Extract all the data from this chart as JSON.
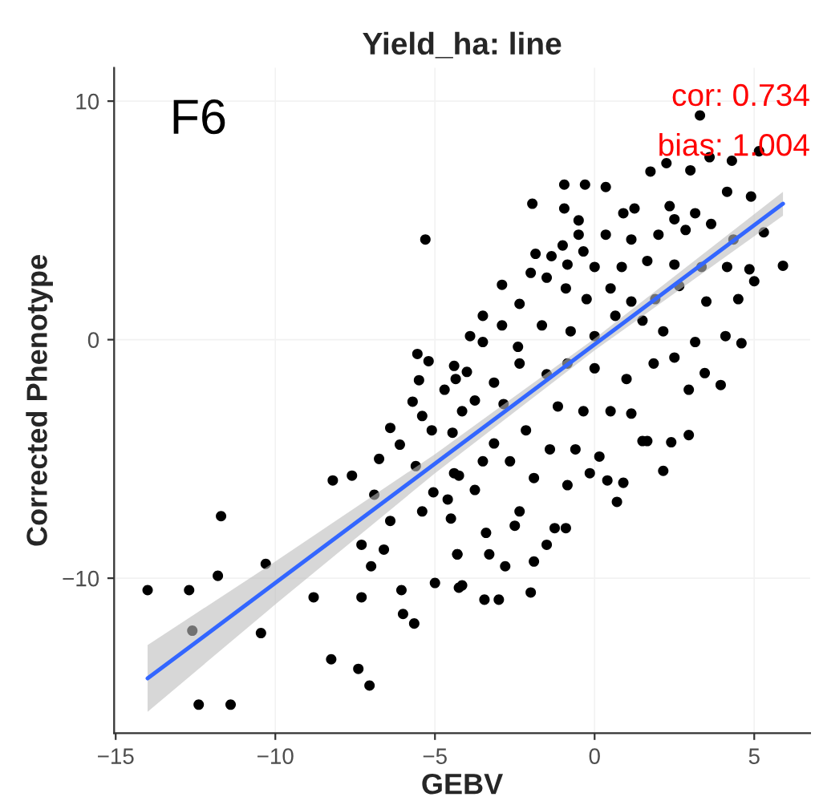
{
  "chart_data": {
    "type": "scatter",
    "title": "Yield_ha: line",
    "xlabel": "GEBV",
    "ylabel": "Corrected Phenotype",
    "xlim": [
      -15.05,
      6.75
    ],
    "ylim": [
      -16.5,
      11.4
    ],
    "xticks": [
      -15,
      -10,
      -5,
      0,
      5
    ],
    "yticks": [
      -10,
      0,
      10
    ],
    "grid": true,
    "annotations": [
      "F6",
      "cor: 0.734",
      "bias: 1.004"
    ],
    "series": [
      {
        "color": "#000000",
        "marker": "circle",
        "x": [
          -14.0,
          -12.7,
          -12.6,
          -12.4,
          -11.4,
          -11.8,
          -11.7,
          -10.3,
          -10.45,
          -8.8,
          -8.2,
          -8.25,
          -7.6,
          -7.3,
          -7.4,
          -7.05,
          -7.3,
          -6.9,
          -6.75,
          -7.0,
          -6.6,
          -6.4,
          -6.4,
          -6.1,
          -6.05,
          -6.0,
          -5.65,
          -5.3,
          -5.55,
          -5.5,
          -5.7,
          -5.4,
          -5.4,
          -5.6,
          -5.1,
          -5.05,
          -5.0,
          -5.2,
          -4.7,
          -4.6,
          -4.5,
          -4.3,
          -4.25,
          -4.45,
          -4.4,
          -4.4,
          3.3,
          1.75,
          2.25,
          3.6,
          4.3,
          5.15,
          3.0,
          -0.95,
          -0.3,
          0.35,
          -1.95,
          -0.95,
          -0.5,
          0.9,
          1.25,
          2.35,
          4.15,
          4.9,
          5.3,
          5.9,
          5.0,
          4.6,
          3.95,
          3.45,
          2.95,
          2.95,
          2.15,
          2.4,
          1.65,
          0.7,
          0.9,
          0.4,
          -0.15,
          -0.85,
          -0.9,
          -1.25,
          -1.5,
          -2.0,
          -1.9,
          -3.0,
          -3.45,
          -2.8,
          -3.3,
          -4.15,
          -4.3,
          -3.75,
          -3.4,
          -2.5,
          -2.35,
          -1.9,
          -2.65,
          -3.5,
          -4.25,
          -3.15,
          -2.15,
          -1.4,
          -0.6,
          0.15,
          1.15,
          1.5,
          0.5,
          -0.35,
          -1.15,
          -2.85,
          -3.75,
          -4.35,
          -4.0,
          -3.15,
          -2.35,
          -1.5,
          -0.85,
          0.0,
          1.0,
          1.85,
          2.5,
          -3.9,
          -3.5,
          -2.9,
          -2.4,
          -1.65,
          -0.75,
          0.0,
          0.65,
          1.5,
          2.15,
          3.15,
          4.1,
          -3.5,
          -2.9,
          -2.35,
          -2.0,
          -1.5,
          -0.9,
          -0.25,
          0.5,
          1.15,
          1.9,
          2.65,
          3.5,
          4.5,
          4.85,
          4.15,
          3.35,
          2.5,
          1.65,
          0.85,
          0.0,
          -0.85,
          -1.35,
          -1.85,
          -1.0,
          -0.35,
          0.35,
          1.15,
          2.0,
          2.85,
          3.65,
          4.35,
          3.15,
          2.5,
          -0.5,
          -4.15
        ],
        "values": [
          -10.5,
          -10.5,
          -12.2,
          -15.3,
          -15.3,
          -9.9,
          -7.4,
          -9.4,
          -12.3,
          -10.8,
          -5.9,
          -13.4,
          -5.7,
          -8.6,
          -13.8,
          -14.5,
          -10.8,
          -6.5,
          -5.0,
          -9.5,
          -8.8,
          -3.7,
          -7.6,
          -4.4,
          -10.5,
          -11.5,
          -11.9,
          4.2,
          -0.6,
          -1.7,
          -2.6,
          -3.2,
          -7.2,
          -5.3,
          -3.8,
          -6.4,
          -10.2,
          -0.9,
          -2.1,
          -6.7,
          -7.5,
          -9.0,
          -10.4,
          -3.9,
          -5.6,
          -1.1,
          9.4,
          7.05,
          7.4,
          7.65,
          7.5,
          7.9,
          7.1,
          6.5,
          6.5,
          6.4,
          5.7,
          5.5,
          5.0,
          5.3,
          5.5,
          5.6,
          6.2,
          6.0,
          4.5,
          3.1,
          2.45,
          -0.15,
          -1.9,
          -1.4,
          -2.1,
          -4.0,
          -5.5,
          -4.3,
          -4.25,
          -6.8,
          -6.0,
          -5.9,
          -5.6,
          -6.1,
          -7.9,
          -7.9,
          -8.6,
          -10.6,
          -9.3,
          -10.9,
          -10.9,
          -9.5,
          -9.0,
          -10.3,
          -9.0,
          -6.3,
          -8.1,
          -7.8,
          -7.2,
          -5.8,
          -5.1,
          -5.1,
          -5.7,
          -4.35,
          -3.8,
          -4.6,
          -4.6,
          -4.9,
          -3.1,
          -4.25,
          -3.0,
          -3.0,
          -2.8,
          -2.7,
          -2.55,
          -1.65,
          -1.35,
          -1.8,
          -1.0,
          -1.45,
          -1.0,
          -1.2,
          -1.65,
          -1.0,
          -0.75,
          0.15,
          -0.1,
          0.6,
          -0.3,
          0.6,
          0.35,
          0.15,
          1.0,
          0.8,
          0.35,
          -0.1,
          0.15,
          1.0,
          2.3,
          1.5,
          2.8,
          2.6,
          2.15,
          1.7,
          2.15,
          1.6,
          1.7,
          2.25,
          1.6,
          1.7,
          2.95,
          3.05,
          3.05,
          3.15,
          3.3,
          3.05,
          3.05,
          3.15,
          3.5,
          3.6,
          3.95,
          3.7,
          4.4,
          4.2,
          4.4,
          4.6,
          4.85,
          4.2,
          5.3,
          5.05,
          4.4,
          -3.0
        ]
      },
      {
        "type": "line",
        "marker": "none",
        "color": "#3366ff",
        "x": [
          -14.0,
          -10.0,
          -5.0,
          0.0,
          5.9
        ],
        "values": [
          -14.2,
          -10.2,
          -5.2,
          -0.2,
          5.7
        ],
        "lower": [
          -15.6,
          -11.1,
          -5.6,
          -0.45,
          5.2
        ],
        "upper": [
          -12.8,
          -9.3,
          -4.8,
          0.05,
          6.2
        ]
      }
    ]
  }
}
